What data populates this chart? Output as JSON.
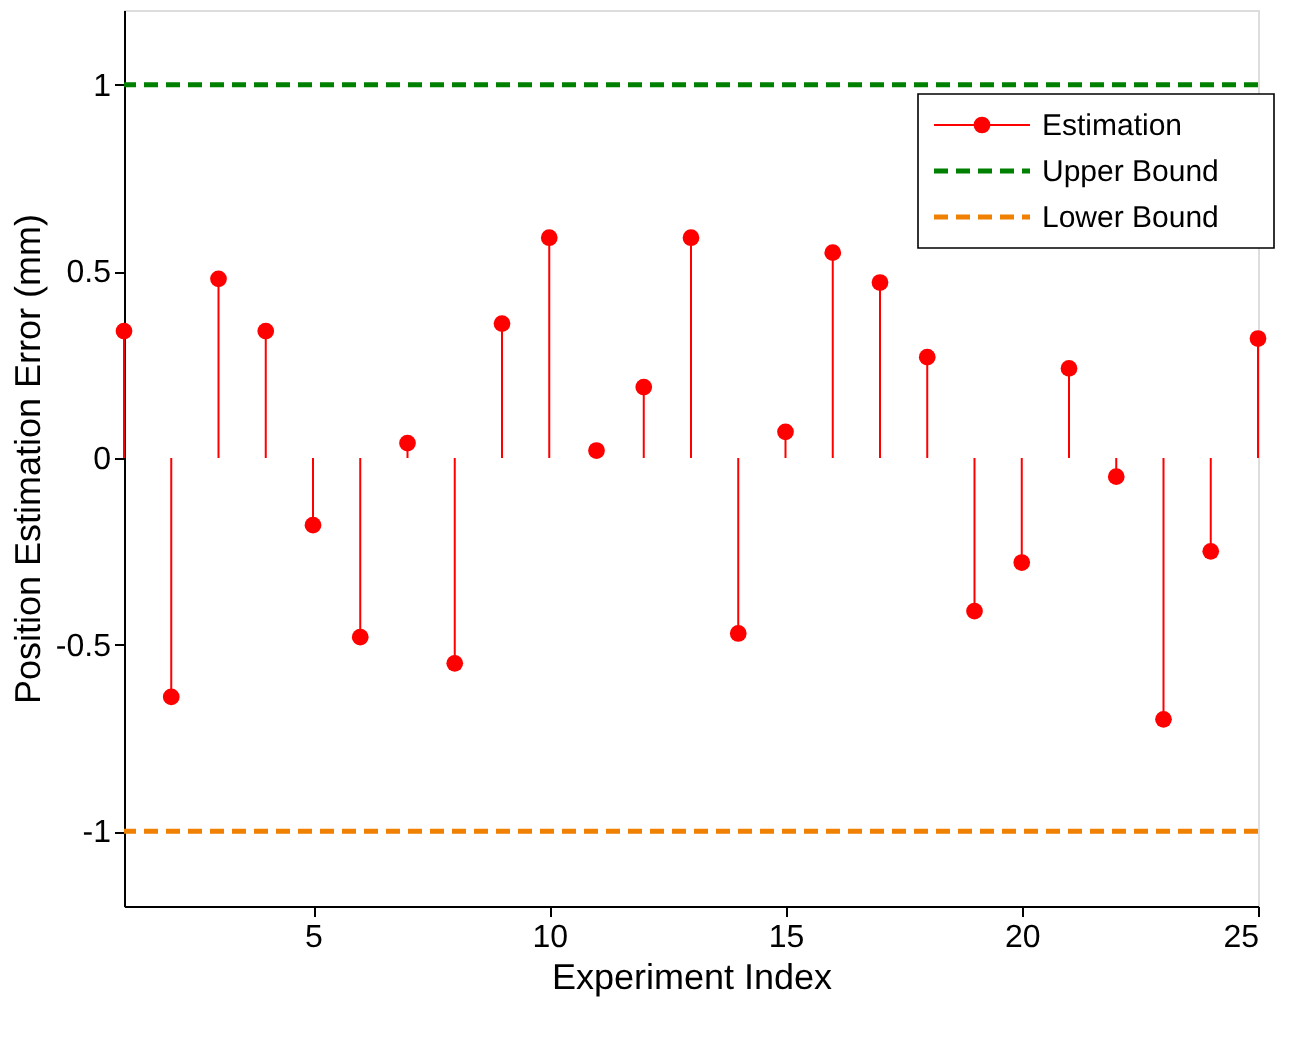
{
  "chart_data": {
    "type": "lollipop",
    "xlabel": "Experiment Index",
    "ylabel": "Position Estimation Error (mm)",
    "x": [
      1,
      2,
      3,
      4,
      5,
      6,
      7,
      8,
      9,
      10,
      11,
      12,
      13,
      14,
      15,
      16,
      17,
      18,
      19,
      20,
      21,
      22,
      23,
      24,
      25
    ],
    "series": [
      {
        "name": "Estimation",
        "color": "#ff0000",
        "values": [
          0.34,
          -0.64,
          0.48,
          0.34,
          -0.18,
          -0.48,
          0.04,
          -0.55,
          0.36,
          0.59,
          0.02,
          0.19,
          0.59,
          -0.47,
          0.07,
          0.55,
          0.47,
          0.27,
          -0.41,
          -0.28,
          0.24,
          -0.05,
          -0.7,
          -0.25,
          0.32
        ]
      }
    ],
    "ref_lines": [
      {
        "axis": "y",
        "value": 1,
        "label": "Upper Bound",
        "color": "#008000",
        "line_style": "dashed"
      },
      {
        "axis": "y",
        "value": -1,
        "label": "Lower Bound",
        "color": "#f08000",
        "line_style": "dashed"
      }
    ],
    "xlim": [
      1,
      25
    ],
    "xticks": [
      5,
      10,
      15,
      20,
      25
    ],
    "ylim": [
      -1.2,
      1.2
    ],
    "yticks": [
      -1,
      -0.5,
      0,
      0.5,
      1
    ],
    "grid": false,
    "legend": "top right",
    "marker": "circle",
    "line_style": "solid"
  }
}
